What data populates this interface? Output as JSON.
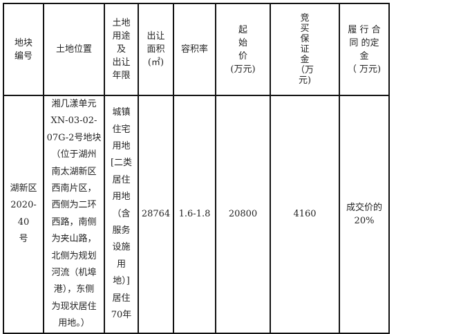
{
  "headers": {
    "plot_no": "地块\n编号",
    "location": "土地位置",
    "use_term": "土地\n用途\n及\n出让\n年限",
    "area": "出让\n面积\n(㎡)",
    "plot_ratio": "容积率",
    "start_price": "起\n始\n价\n(万元)",
    "deposit": "竞\n买\n保\n证\n金\n（万\n元)",
    "performance_deposit": "履 行 合\n同 的定\n金\n（ 万元)"
  },
  "row": {
    "plot_no": "湖新区\n2020-40\n号",
    "location": "湘几漾单元\nXN-03-02-\n07G-2号地块\n（位于湖州\n南太湖新区\n西南片区，\n西侧为二环\n西路，南侧\n为夹山路，\n北侧为规划\n河流（机埠\n港），东侧\n为现状居住\n用地。）",
    "use_term": "城镇\n住宅\n用地\n[二类\n居住\n用地\n（含\n服务\n设施\n用\n地）]\n居住\n70年",
    "area": "28764",
    "plot_ratio": "1.6-1.8",
    "start_price": "20800",
    "deposit": "4160",
    "performance_deposit": "成交价的\n20%"
  }
}
